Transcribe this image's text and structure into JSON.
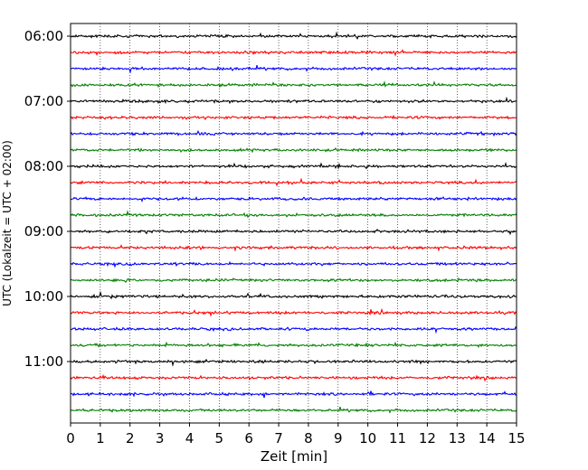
{
  "chart_data": {
    "type": "line",
    "title": "",
    "xlabel": "Zeit  [min]",
    "ylabel": "UTC (Lokalzeit = UTC + 02:00)",
    "xlim": [
      0,
      15
    ],
    "x_ticks": [
      "0",
      "1",
      "2",
      "3",
      "4",
      "5",
      "6",
      "7",
      "8",
      "9",
      "10",
      "11",
      "12",
      "13",
      "14",
      "15"
    ],
    "y_tick_labels": [
      "06:00",
      "07:00",
      "08:00",
      "09:00",
      "10:00",
      "11:00"
    ],
    "traces_start": "06:00",
    "trace_interval_min": 15,
    "trace_count": 24,
    "trace_colors": [
      "#000000",
      "#ff0000",
      "#0000ff",
      "#008000"
    ],
    "grid": "vertical dotted"
  }
}
